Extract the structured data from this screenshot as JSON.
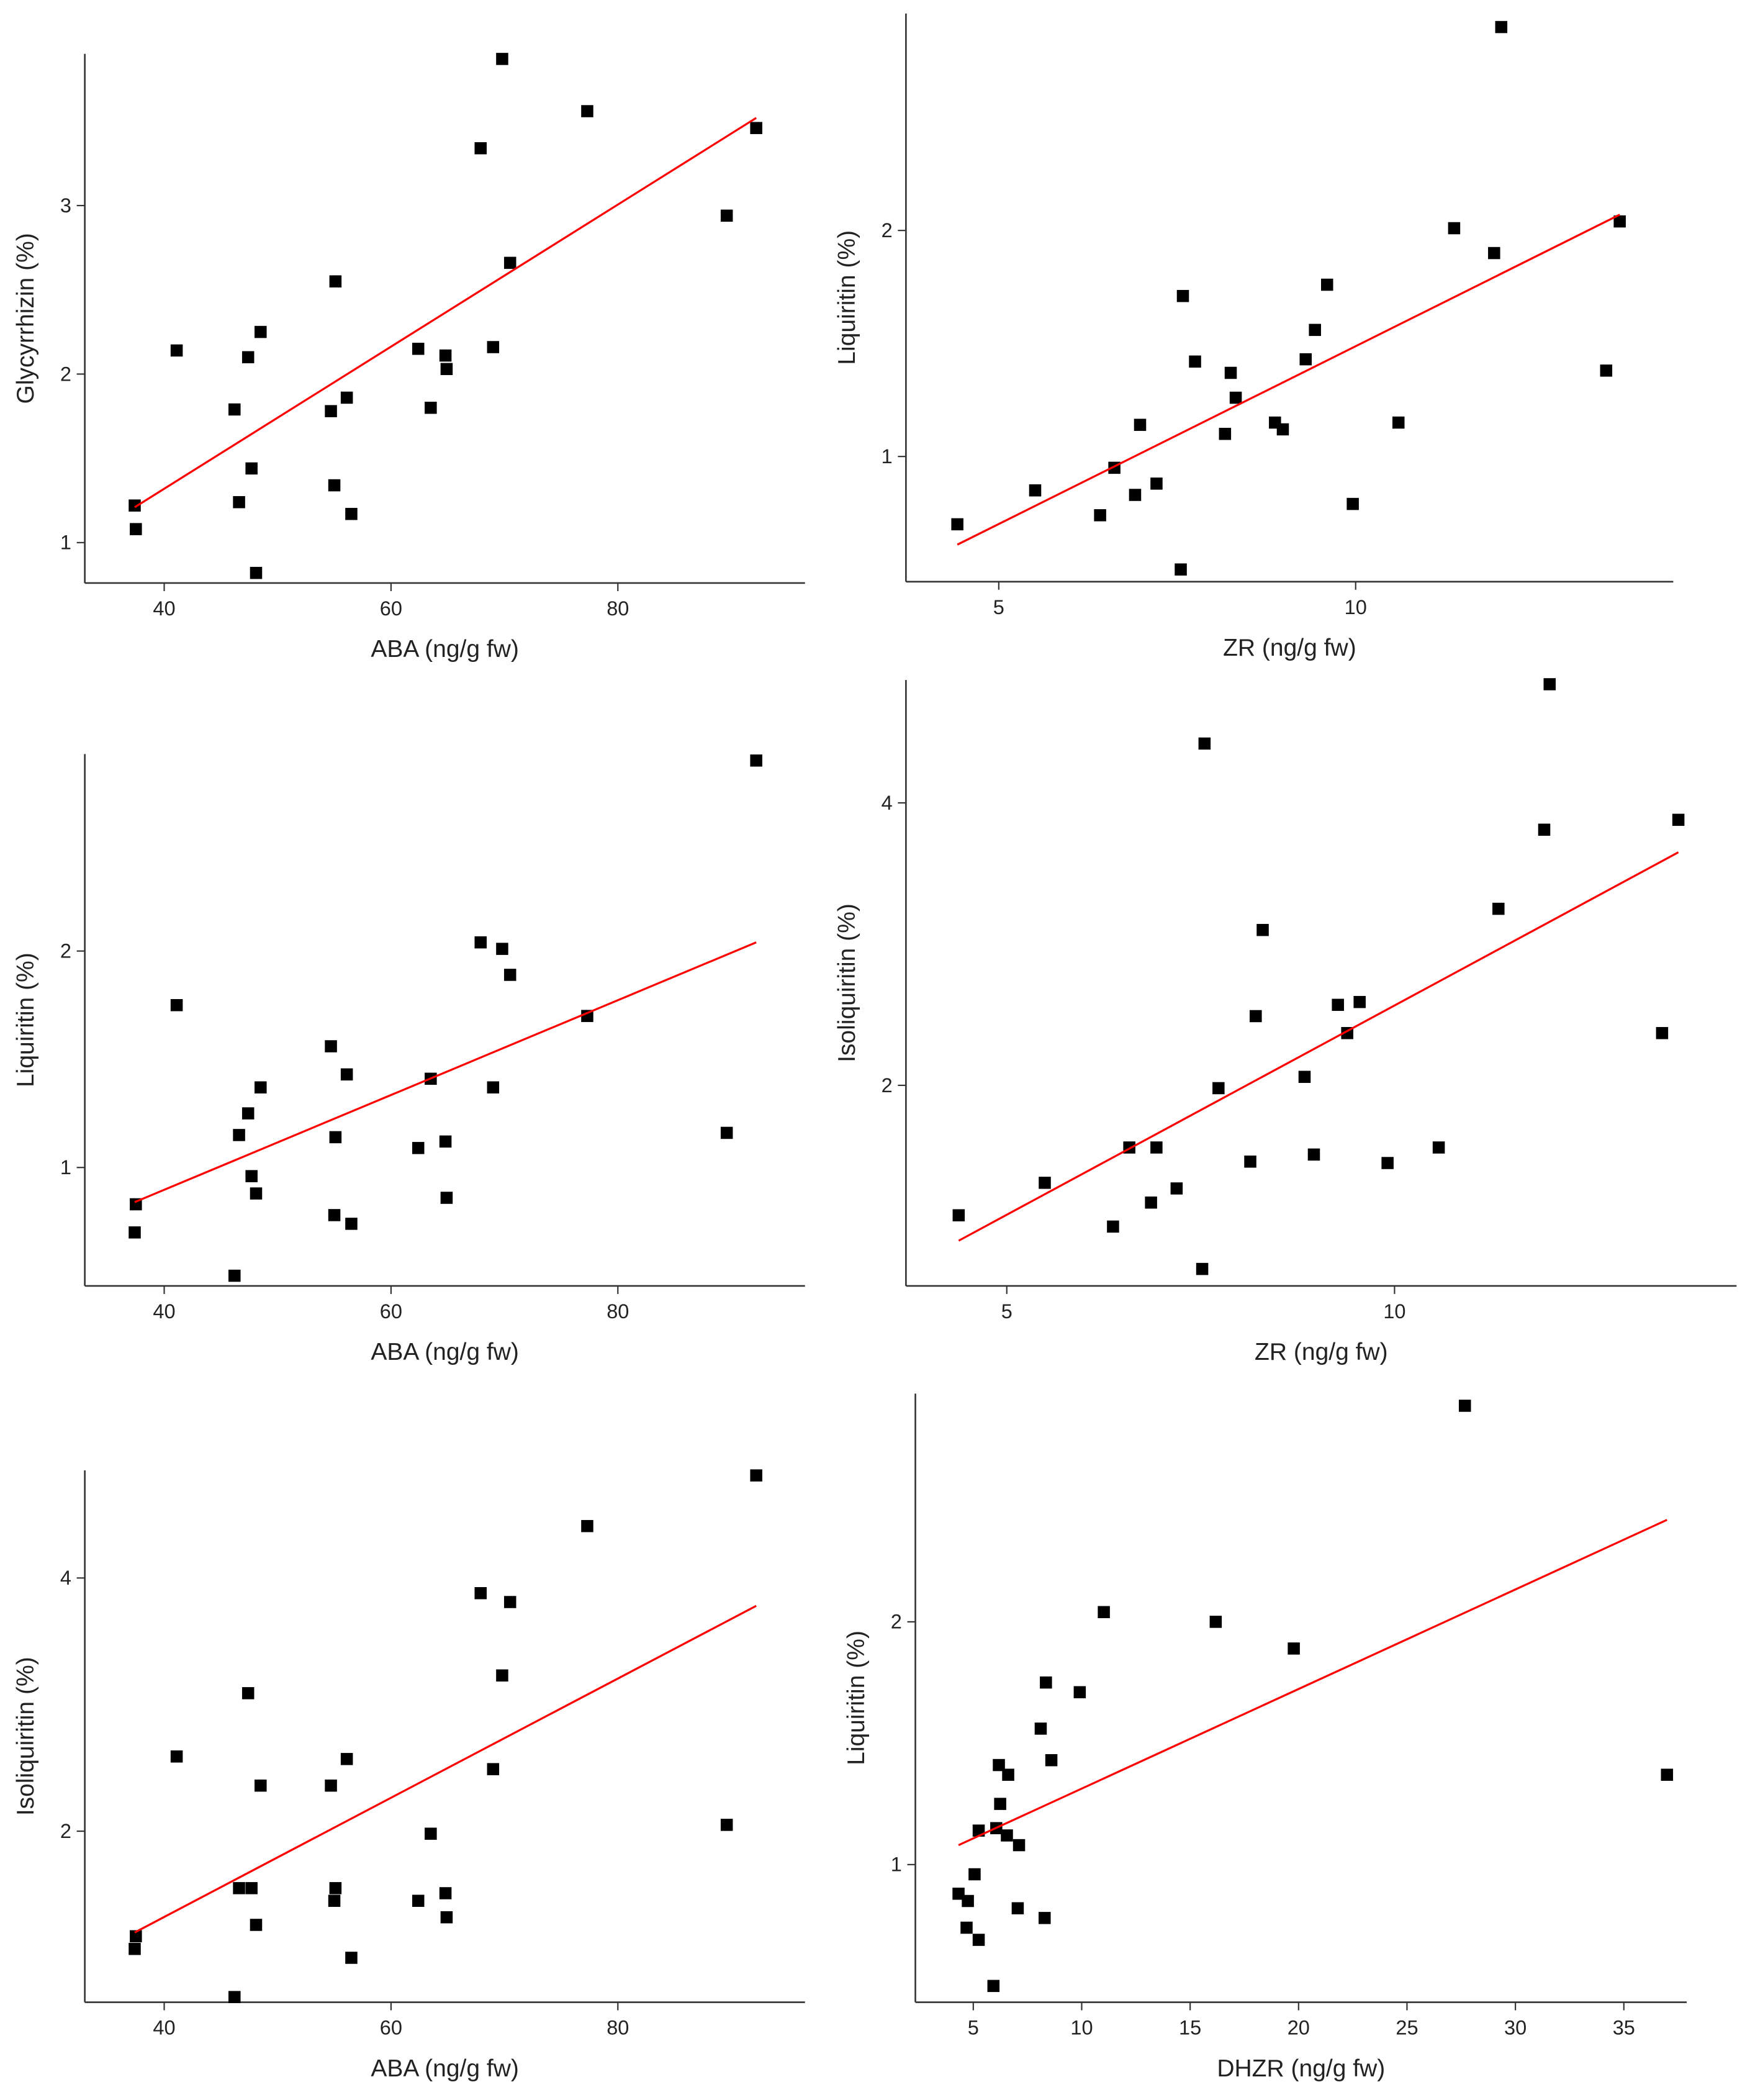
{
  "chart_data": [
    {
      "type": "scatter",
      "x_label": "ABA (ng/g fw)",
      "y_label": "Glycyrrhizin (%)",
      "color": "#000000",
      "x": [
        37.4,
        37.5,
        41.1,
        46.2,
        46.6,
        47.4,
        47.7,
        48.1,
        48.5,
        54.7,
        55.0,
        55.1,
        56.1,
        56.5,
        62.4,
        63.5,
        64.8,
        64.9,
        67.9,
        69.0,
        69.8,
        70.5,
        77.3,
        89.6,
        92.2
      ],
      "y": [
        1.22,
        1.08,
        2.14,
        1.79,
        1.24,
        2.1,
        1.44,
        0.82,
        2.25,
        1.78,
        1.34,
        2.55,
        1.86,
        1.17,
        2.15,
        1.8,
        2.11,
        2.03,
        3.34,
        2.16,
        3.87,
        2.66,
        3.56,
        2.94,
        3.46
      ],
      "xlim": [
        33,
        96.5
      ],
      "ylim": [
        0.76,
        3.9
      ],
      "xticks": [
        40,
        60,
        80
      ],
      "yticks": [
        1,
        2,
        3
      ],
      "trend_line": {
        "x": [
          37.4,
          92.2
        ],
        "y": [
          1.21,
          3.52
        ],
        "color": "#ff0000"
      }
    },
    {
      "type": "scatter",
      "x_label": "ZR (ng/g fw)",
      "y_label": "Liquiritin (%)",
      "color": "#000000",
      "x": [
        4.42,
        5.51,
        6.42,
        6.62,
        6.91,
        6.98,
        7.21,
        7.55,
        7.58,
        7.75,
        8.17,
        8.25,
        8.32,
        8.87,
        8.98,
        9.3,
        9.43,
        9.6,
        9.96,
        10.6,
        11.38,
        11.94,
        12.04,
        13.51,
        13.7
      ],
      "y": [
        0.7,
        0.85,
        0.74,
        0.95,
        0.83,
        1.14,
        0.88,
        0.5,
        1.71,
        1.42,
        1.1,
        1.37,
        1.26,
        1.15,
        1.12,
        1.43,
        1.56,
        1.76,
        0.79,
        1.15,
        2.01,
        1.9,
        2.9,
        1.38,
        2.04
      ],
      "xlim": [
        3.7,
        14.45
      ],
      "ylim": [
        0.446,
        2.96
      ],
      "xticks": [
        5,
        10
      ],
      "yticks": [
        1,
        2
      ],
      "trend_line": {
        "x": [
          4.42,
          13.7
        ],
        "y": [
          0.61,
          2.07
        ],
        "color": "#ff0000"
      }
    },
    {
      "type": "scatter",
      "x_label": "ABA (ng/g fw)",
      "y_label": "Liquiritin (%)",
      "color": "#000000",
      "x": [
        37.4,
        37.5,
        41.1,
        46.2,
        46.6,
        47.4,
        47.7,
        48.1,
        48.5,
        54.7,
        55.0,
        55.1,
        56.1,
        56.5,
        62.4,
        63.5,
        64.8,
        64.9,
        67.9,
        69.0,
        69.8,
        70.5,
        77.3,
        89.6,
        92.2
      ],
      "y": [
        0.7,
        0.83,
        1.75,
        0.5,
        1.15,
        1.25,
        0.96,
        0.88,
        1.37,
        1.56,
        0.78,
        1.14,
        1.43,
        0.74,
        1.09,
        1.41,
        1.12,
        0.86,
        2.04,
        1.37,
        2.01,
        1.89,
        1.7,
        1.16,
        2.88
      ],
      "xlim": [
        33,
        96.5
      ],
      "ylim": [
        0.453,
        2.91
      ],
      "xticks": [
        40,
        60,
        80
      ],
      "yticks": [
        1,
        2
      ],
      "trend_line": {
        "x": [
          37.4,
          92.2
        ],
        "y": [
          0.84,
          2.04
        ],
        "color": "#ff0000"
      }
    },
    {
      "type": "scatter",
      "x_label": "ZR (ng/g fw)",
      "y_label": "Isoliquiritin (%)",
      "color": "#000000",
      "x": [
        4.38,
        5.49,
        6.37,
        6.58,
        6.86,
        6.93,
        7.19,
        7.52,
        7.55,
        7.73,
        8.14,
        8.21,
        8.3,
        8.84,
        8.96,
        9.27,
        9.39,
        9.55,
        9.91,
        10.57,
        11.34,
        11.93,
        12.0,
        13.45,
        13.66
      ],
      "y": [
        1.08,
        1.31,
        1.0,
        1.56,
        1.17,
        1.56,
        1.27,
        0.7,
        4.42,
        1.98,
        1.46,
        2.49,
        3.1,
        2.06,
        1.51,
        2.57,
        2.37,
        2.59,
        1.45,
        1.56,
        3.25,
        3.81,
        4.84,
        2.37,
        3.88
      ],
      "xlim": [
        3.7,
        14.41
      ],
      "ylim": [
        0.58,
        4.87
      ],
      "xticks": [
        5,
        10
      ],
      "yticks": [
        2,
        4
      ],
      "trend_line": {
        "x": [
          4.38,
          13.66
        ],
        "y": [
          0.9,
          3.65
        ],
        "color": "#ff0000"
      }
    },
    {
      "type": "scatter",
      "x_label": "ABA (ng/g fw)",
      "y_label": "Isoliquiritin (%)",
      "color": "#000000",
      "x": [
        37.4,
        37.5,
        41.1,
        46.2,
        46.6,
        47.4,
        47.7,
        48.1,
        48.5,
        54.7,
        55.0,
        55.1,
        56.1,
        56.5,
        62.4,
        63.5,
        64.8,
        64.9,
        67.9,
        69.0,
        69.8,
        70.5,
        77.3,
        89.6,
        92.2
      ],
      "y": [
        1.07,
        1.17,
        2.59,
        0.69,
        1.55,
        3.09,
        1.55,
        1.26,
        2.36,
        2.36,
        1.45,
        1.55,
        2.57,
        1.0,
        1.45,
        1.98,
        1.51,
        1.32,
        3.88,
        2.49,
        3.23,
        3.81,
        4.41,
        2.05,
        4.81
      ],
      "xlim": [
        33,
        96.5
      ],
      "ylim": [
        0.649,
        4.85
      ],
      "xticks": [
        40,
        60,
        80
      ],
      "yticks": [
        2,
        4
      ],
      "trend_line": {
        "x": [
          37.4,
          92.2
        ],
        "y": [
          1.2,
          3.78
        ],
        "color": "#ff0000"
      }
    },
    {
      "type": "scatter",
      "x_label": "DHZR (ng/g fw)",
      "y_label": "Liquiritin (%)",
      "color": "#000000",
      "x": [
        4.32,
        4.69,
        4.75,
        5.06,
        5.25,
        5.25,
        5.93,
        6.06,
        6.18,
        6.24,
        6.55,
        6.61,
        7.05,
        7.11,
        8.11,
        8.29,
        8.35,
        8.6,
        9.91,
        11.02,
        16.18,
        19.78,
        27.67,
        36.99
      ],
      "y": [
        0.88,
        0.74,
        0.85,
        0.96,
        0.69,
        1.14,
        0.5,
        1.15,
        1.41,
        1.25,
        1.12,
        1.37,
        0.82,
        1.08,
        1.56,
        0.78,
        1.75,
        1.43,
        1.71,
        2.04,
        2.0,
        1.89,
        2.89,
        1.37
      ],
      "xlim": [
        2.33,
        37.9
      ],
      "ylim": [
        0.433,
        2.94
      ],
      "xticks": [
        5,
        10,
        15,
        20,
        25,
        30,
        35
      ],
      "yticks": [
        1,
        2
      ],
      "trend_line": {
        "x": [
          4.32,
          36.99
        ],
        "y": [
          1.08,
          2.42
        ],
        "color": "#ff0000"
      }
    }
  ]
}
